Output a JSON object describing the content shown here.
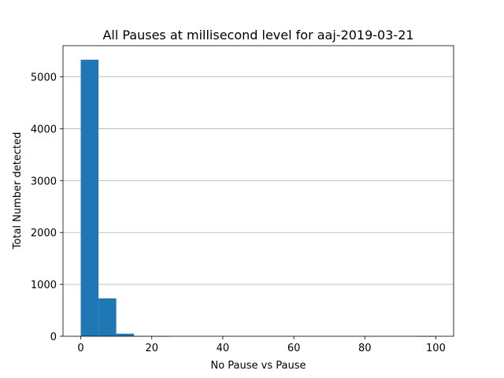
{
  "chart_data": {
    "type": "bar",
    "title": "All Pauses at millisecond level for aaj-2019-03-21",
    "xlabel": "No Pause vs Pause",
    "ylabel": "Total Number detected",
    "xlim": [
      -5,
      105
    ],
    "ylim": [
      0,
      5600
    ],
    "xticks": [
      0,
      20,
      40,
      60,
      80,
      100
    ],
    "yticks": [
      0,
      1000,
      2000,
      3000,
      4000,
      5000
    ],
    "grid": "horizontal",
    "bar_color": "#1f77b4",
    "bins": [
      {
        "x0": 0,
        "x1": 5,
        "value": 5330
      },
      {
        "x0": 5,
        "x1": 10,
        "value": 730
      },
      {
        "x0": 10,
        "x1": 15,
        "value": 50
      },
      {
        "x0": 15,
        "x1": 20,
        "value": 3
      },
      {
        "x0": 20,
        "x1": 25,
        "value": 1
      },
      {
        "x0": 25,
        "x1": 30,
        "value": 0
      },
      {
        "x0": 30,
        "x1": 35,
        "value": 0
      },
      {
        "x0": 35,
        "x1": 40,
        "value": 0
      },
      {
        "x0": 40,
        "x1": 45,
        "value": 0
      },
      {
        "x0": 45,
        "x1": 50,
        "value": 0
      },
      {
        "x0": 50,
        "x1": 55,
        "value": 0
      },
      {
        "x0": 55,
        "x1": 60,
        "value": 0
      },
      {
        "x0": 60,
        "x1": 65,
        "value": 0
      },
      {
        "x0": 65,
        "x1": 70,
        "value": 0
      },
      {
        "x0": 70,
        "x1": 75,
        "value": 0
      },
      {
        "x0": 75,
        "x1": 80,
        "value": 0
      },
      {
        "x0": 80,
        "x1": 85,
        "value": 0
      },
      {
        "x0": 85,
        "x1": 90,
        "value": 0
      },
      {
        "x0": 90,
        "x1": 95,
        "value": 0
      },
      {
        "x0": 95,
        "x1": 100,
        "value": 1
      }
    ]
  }
}
